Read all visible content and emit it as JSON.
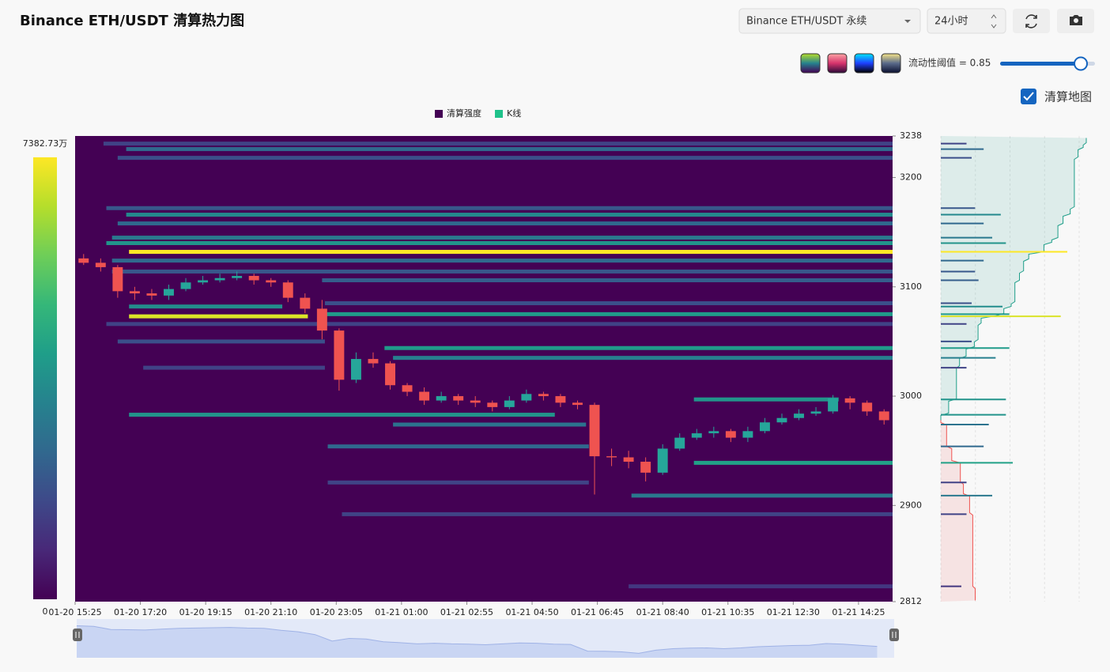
{
  "toolbar": {
    "title": "Binance ETH/USDT 清算热力图",
    "market_select": "Binance ETH/USDT 永续",
    "period_select": "24小时",
    "threshold": {
      "value": 0.85,
      "label": "流动性阈值 = 0.85"
    },
    "checkbox": {
      "label": "清算地图",
      "checked": true
    }
  },
  "chart_data": {
    "type": "candlestick",
    "xlim": [
      "01-20 15:25",
      "01-21 15:25"
    ],
    "xticks": [
      "01-20 15:25",
      "01-20 17:20",
      "01-20 19:15",
      "01-20 21:10",
      "01-20 23:05",
      "01-21 01:00",
      "01-21 02:55",
      "01-21 04:50",
      "01-21 06:45",
      "01-21 08:40",
      "01-21 10:35",
      "01-21 12:30",
      "01-21 14:25"
    ],
    "ylim": [
      2812,
      3238
    ],
    "yticks": [
      2812,
      2900,
      3000,
      3100,
      3200,
      3238
    ],
    "colorbar": {
      "min": 0,
      "max": {
        "value": 7382.73,
        "label": "7382.73万"
      }
    },
    "heatmap": {
      "name": "清算强度",
      "color": "#440154",
      "colors": [
        "#440154",
        "#482878",
        "#3e4989",
        "#31688e",
        "#26828e",
        "#1f9e89",
        "#35b779",
        "#6ece58",
        "#b5de2b",
        "#fde725"
      ],
      "price": [
        3231,
        3226,
        3218,
        3172,
        3166,
        3158,
        3145,
        3140,
        3132,
        3124,
        3114,
        3106,
        3085,
        3082,
        3075,
        3073,
        3066,
        3050,
        3044,
        3035,
        3026,
        2997,
        2983,
        2974,
        2954,
        2939,
        2921,
        2909,
        2892,
        2826
      ],
      "start": [
        "01-20 16:15",
        "01-20 16:55",
        "01-20 16:40",
        "01-20 16:20",
        "01-20 16:55",
        "01-20 16:40",
        "01-20 16:30",
        "01-20 16:20",
        "01-20 17:00",
        "01-20 16:30",
        "01-20 16:30",
        "01-20 22:40",
        "01-20 22:45",
        "01-20 17:00",
        "01-20 22:45",
        "01-20 17:00",
        "01-20 16:20",
        "01-20 16:40",
        "01-21 00:30",
        "01-21 00:45",
        "01-20 17:25",
        "01-21 09:35",
        "01-20 17:00",
        "01-21 00:45",
        "01-20 22:50",
        "01-21 09:35",
        "01-20 22:50",
        "01-21 07:45",
        "01-20 23:15",
        "01-21 07:40"
      ],
      "end": [
        null,
        null,
        null,
        null,
        null,
        null,
        null,
        null,
        null,
        null,
        null,
        null,
        null,
        "01-20 21:30",
        null,
        "01-20 22:15",
        null,
        "01-20 22:45",
        null,
        null,
        "01-20 22:45",
        "01-21 13:50",
        "01-21 05:30",
        "01-21 06:25",
        "01-21 06:30",
        null,
        "01-21 06:30",
        null,
        null,
        null
      ],
      "values": [
        1500,
        2500,
        1800,
        2000,
        3500,
        2500,
        3000,
        3800,
        7382.73,
        2500,
        2000,
        2200,
        1800,
        3600,
        4000,
        7000,
        1500,
        1800,
        4000,
        3200,
        1500,
        3800,
        3800,
        2800,
        2500,
        4200,
        1500,
        3000,
        1500,
        1200
      ]
    },
    "candles": {
      "name": "K线",
      "color": "#1fc28a",
      "up_color": "#26a69a",
      "down_color": "#ef5350",
      "x": [
        "01-20 15:25",
        "01-20 15:55",
        "01-20 16:25",
        "01-20 16:55",
        "01-20 17:25",
        "01-20 17:55",
        "01-20 18:25",
        "01-20 18:55",
        "01-20 19:25",
        "01-20 19:55",
        "01-20 20:25",
        "01-20 20:55",
        "01-20 21:25",
        "01-20 21:55",
        "01-20 22:25",
        "01-20 22:55",
        "01-20 23:25",
        "01-20 23:55",
        "01-21 00:25",
        "01-21 00:55",
        "01-21 01:25",
        "01-21 01:55",
        "01-21 02:25",
        "01-21 02:55",
        "01-21 03:25",
        "01-21 03:55",
        "01-21 04:25",
        "01-21 04:55",
        "01-21 05:25",
        "01-21 05:55",
        "01-21 06:25",
        "01-21 06:55",
        "01-21 07:25",
        "01-21 07:55",
        "01-21 08:25",
        "01-21 08:55",
        "01-21 09:25",
        "01-21 09:55",
        "01-21 10:25",
        "01-21 10:55",
        "01-21 11:25",
        "01-21 11:55",
        "01-21 12:25",
        "01-21 12:55",
        "01-21 13:25",
        "01-21 13:55",
        "01-21 14:25",
        "01-21 14:55"
      ],
      "open": [
        3126,
        3122,
        3118,
        3096,
        3094,
        3092,
        3098,
        3104,
        3106,
        3108,
        3110,
        3106,
        3104,
        3090,
        3080,
        3060,
        3015,
        3034,
        3030,
        3010,
        3004,
        2996,
        3000,
        2996,
        2994,
        2990,
        2996,
        3002,
        3000,
        2994,
        2992,
        2945,
        2944,
        2940,
        2930,
        2952,
        2962,
        2966,
        2968,
        2962,
        2968,
        2976,
        2980,
        2984,
        2986,
        2998,
        2994,
        2986
      ],
      "high": [
        3130,
        3126,
        3120,
        3100,
        3098,
        3102,
        3108,
        3110,
        3112,
        3114,
        3112,
        3108,
        3106,
        3094,
        3088,
        3062,
        3040,
        3040,
        3032,
        3012,
        3008,
        3004,
        3002,
        3000,
        2996,
        3000,
        3006,
        3004,
        3002,
        2996,
        2994,
        2952,
        2950,
        2944,
        2956,
        2966,
        2970,
        2972,
        2970,
        2972,
        2980,
        2984,
        2988,
        2990,
        3001,
        3000,
        2996,
        2988
      ],
      "low": [
        3120,
        3114,
        3090,
        3088,
        3088,
        3088,
        3096,
        3102,
        3104,
        3106,
        3102,
        3100,
        3086,
        3076,
        3052,
        3005,
        3012,
        3026,
        3006,
        3000,
        2992,
        2994,
        2992,
        2990,
        2986,
        2988,
        2994,
        2996,
        2990,
        2988,
        2910,
        2936,
        2934,
        2922,
        2928,
        2950,
        2960,
        2962,
        2958,
        2958,
        2966,
        2974,
        2978,
        2982,
        2984,
        2988,
        2982,
        2974
      ],
      "close": [
        3122,
        3118,
        3096,
        3094,
        3092,
        3098,
        3104,
        3106,
        3108,
        3110,
        3106,
        3104,
        3090,
        3080,
        3060,
        3015,
        3034,
        3030,
        3010,
        3004,
        2996,
        3000,
        2996,
        2994,
        2990,
        2996,
        3002,
        3000,
        2994,
        2992,
        2945,
        2944,
        2940,
        2930,
        2952,
        2962,
        2966,
        2968,
        2962,
        2968,
        2976,
        2980,
        2984,
        2986,
        2998,
        2994,
        2986,
        2978
      ]
    }
  }
}
